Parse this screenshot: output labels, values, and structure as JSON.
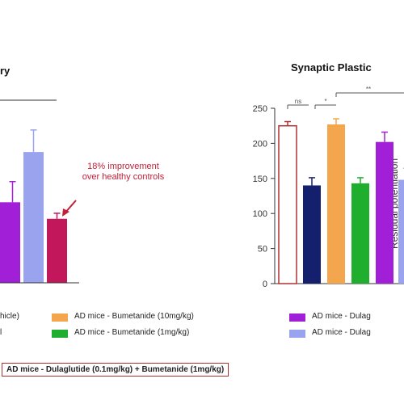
{
  "colors": {
    "healthy": "#ffffff",
    "ad_vehicle": "#14206e",
    "bumetanide_10": "#f4a64e",
    "bumetanide_1": "#1fae2e",
    "dulaglutide": "#a21fd8",
    "dulaglutide_low": "#9aa3ee",
    "combo": "#c2185b",
    "outline": "#b03030",
    "annotation": "#c0203a"
  },
  "chart_data": [
    {
      "type": "bar",
      "title": "ry",
      "series": [
        {
          "name": "",
          "values": [
            117,
            190,
            93
          ],
          "errors": [
            30,
            32,
            8
          ]
        }
      ],
      "annotation": [
        "18% improvement",
        "over healthy controls"
      ]
    },
    {
      "type": "bar",
      "title": "Synaptic Plastic",
      "ylabel": "Residual potentiation (% from baseline)",
      "ylim": [
        0,
        250
      ],
      "yticks": [
        "0",
        "50",
        "100",
        "150",
        "200",
        "250"
      ],
      "series": [
        {
          "name": "",
          "values": [
            225,
            140,
            227,
            143,
            202,
            148
          ],
          "errors": [
            6,
            11,
            8,
            8,
            14,
            6
          ]
        }
      ],
      "significance": [
        "ns",
        "*",
        "**"
      ]
    }
  ],
  "legend": {
    "row1": [
      "hicle)",
      "AD mice - Bumetanide (10mg/kg)",
      "AD mice - Dulag"
    ],
    "row2": [
      "l",
      "AD mice - Bumetanide (1mg/kg)",
      "AD mice - Dulag"
    ],
    "bottom": "AD mice - Dulaglutide (0.1mg/kg) + Bumetanide (1mg/kg)"
  }
}
